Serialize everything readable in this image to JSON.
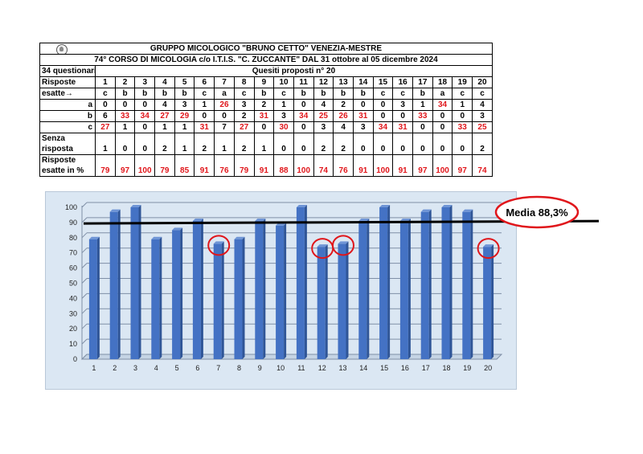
{
  "table": {
    "header": "GRUPPO MICOLOGICO \"BRUNO CETTO\" VENEZIA-MESTRE",
    "course": "74° CORSO DI MICOLOGIA c/o  I.T.I.S. \"C. ZUCCANTE\" DAL 31 ottobre al 05 dicembre 2024",
    "questionnaires": "34 questionari",
    "questions_title": "Quesiti proposti n° 20",
    "answers_label": "Risposte",
    "correct_label": "esatte→",
    "questions": [
      "1",
      "2",
      "3",
      "4",
      "5",
      "6",
      "7",
      "8",
      "9",
      "10",
      "11",
      "12",
      "13",
      "14",
      "15",
      "16",
      "17",
      "18",
      "19",
      "20"
    ],
    "correct": [
      "c",
      "b",
      "b",
      "b",
      "b",
      "c",
      "a",
      "c",
      "b",
      "c",
      "b",
      "b",
      "b",
      "b",
      "c",
      "c",
      "b",
      "a",
      "c",
      "c"
    ],
    "rows": [
      {
        "label": "a",
        "values": [
          "0",
          "0",
          "0",
          "4",
          "3",
          "1",
          "26",
          "3",
          "2",
          "1",
          "0",
          "4",
          "2",
          "0",
          "0",
          "3",
          "1",
          "34",
          "1",
          "4"
        ]
      },
      {
        "label": "b",
        "values": [
          "6",
          "33",
          "34",
          "27",
          "29",
          "0",
          "0",
          "2",
          "31",
          "3",
          "34",
          "25",
          "26",
          "31",
          "0",
          "0",
          "33",
          "0",
          "0",
          "3"
        ]
      },
      {
        "label": "c",
        "values": [
          "27",
          "1",
          "0",
          "1",
          "1",
          "31",
          "7",
          "27",
          "0",
          "30",
          "0",
          "3",
          "4",
          "3",
          "34",
          "31",
          "0",
          "0",
          "33",
          "25"
        ]
      }
    ],
    "no_answer_label_1": "Senza",
    "no_answer_label_2": "risposta",
    "no_answer": [
      "1",
      "0",
      "0",
      "2",
      "1",
      "2",
      "1",
      "2",
      "1",
      "0",
      "0",
      "2",
      "2",
      "0",
      "0",
      "0",
      "0",
      "0",
      "0",
      "2"
    ],
    "pct_label_1": "Risposte",
    "pct_label_2": "esatte in %",
    "percent": [
      "79",
      "97",
      "100",
      "79",
      "85",
      "91",
      "76",
      "79",
      "91",
      "88",
      "100",
      "74",
      "76",
      "91",
      "100",
      "91",
      "97",
      "100",
      "97",
      "74"
    ]
  },
  "chart_data": {
    "type": "bar",
    "categories": [
      "1",
      "2",
      "3",
      "4",
      "5",
      "6",
      "7",
      "8",
      "9",
      "10",
      "11",
      "12",
      "13",
      "14",
      "15",
      "16",
      "17",
      "18",
      "19",
      "20"
    ],
    "series": [
      {
        "values": [
          79,
          97,
          100,
          79,
          85,
          91,
          76,
          79,
          91,
          88,
          100,
          74,
          76,
          91,
          100,
          91,
          97,
          100,
          97,
          74
        ]
      }
    ],
    "ylim": [
      0,
      100
    ],
    "yticks": [
      "0",
      "10",
      "20",
      "30",
      "40",
      "50",
      "60",
      "70",
      "80",
      "90",
      "100"
    ],
    "grid": true,
    "mean_value": 88.3,
    "mean_label": "Media 88,3%",
    "circled_categories": [
      "7",
      "12",
      "13",
      "20"
    ],
    "bar_color": "#4472c4",
    "highlight_color": "#e0161b",
    "panel_color": "#dbe7f3"
  }
}
